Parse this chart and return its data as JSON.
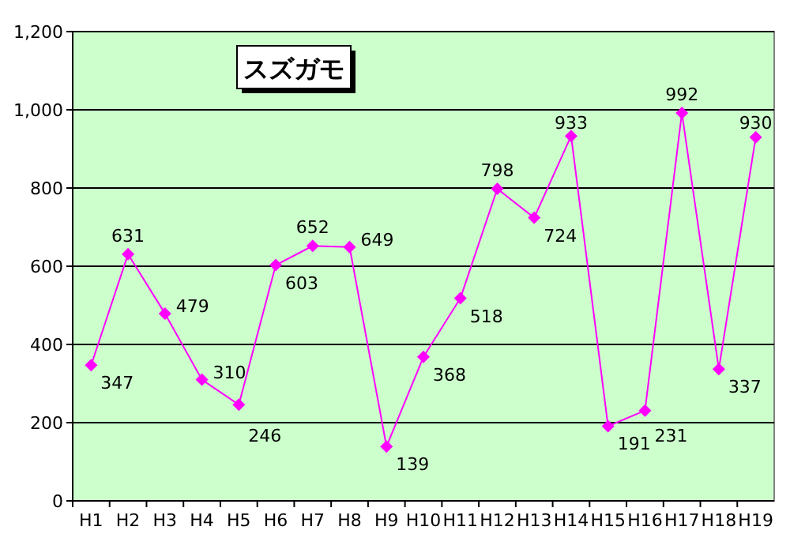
{
  "chart_data": {
    "type": "line",
    "title": "スズガモ",
    "categories": [
      "H1",
      "H2",
      "H3",
      "H4",
      "H5",
      "H6",
      "H7",
      "H8",
      "H9",
      "H10",
      "H11",
      "H12",
      "H13",
      "H14",
      "H15",
      "H16",
      "H17",
      "H18",
      "H19"
    ],
    "series": [
      {
        "color": "#ff00ff",
        "values": [
          347,
          631,
          479,
          310,
          246,
          603,
          652,
          649,
          139,
          368,
          518,
          798,
          724,
          933,
          191,
          231,
          992,
          337,
          930
        ]
      }
    ],
    "ylim": [
      0,
      1200
    ],
    "yticks": [
      0,
      200,
      400,
      600,
      800,
      {
        "value": 1000,
        "label": "1,000"
      },
      {
        "value": 1200,
        "label": "1,200"
      }
    ],
    "grid": "y",
    "marker": "diamond",
    "line_style": "solid",
    "data_labels": true
  }
}
